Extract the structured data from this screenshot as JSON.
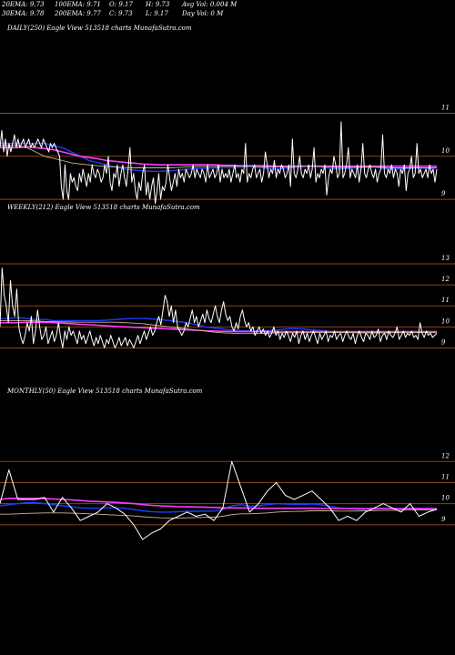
{
  "header": {
    "ema20": "20EMA: 9.73",
    "ema30": "30EMA: 9.78",
    "ema100": "100EMA: 9.71",
    "ema200": "200EMA: 9.77",
    "open": "O: 9.17",
    "close": "C: 9.73",
    "high": "H: 9.73",
    "low": "L: 9.17",
    "avg_vol": "Avg Vol: 0.004  M",
    "day_vol": "Day Vol: 0  M"
  },
  "colors": {
    "background": "#000000",
    "gridline": "#8b4513",
    "price": "#ffffff",
    "ema_short": "#1e3cff",
    "ema_long": "#ff3cff",
    "ema_mid": "#d2b48c"
  },
  "chart_data": [
    {
      "type": "line",
      "title": "DAILY(250) Eagle   View  513518 charts MunafaSutra.com",
      "ylim": [
        8.6,
        11.2
      ],
      "ytick_labels": [
        "11",
        "10",
        "9"
      ],
      "ytick_values": [
        11,
        10,
        9
      ],
      "grid": "horizontal",
      "x_count": 250,
      "series": [
        {
          "style": "price",
          "values": [
            10.2,
            10.6,
            10.1,
            10.4,
            10.0,
            10.3,
            10.1,
            10.3,
            10.5,
            10.2,
            10.4,
            10.2,
            10.3,
            10.4,
            10.2,
            10.3,
            10.4,
            10.2,
            10.3,
            10.2,
            10.3,
            10.4,
            10.3,
            10.2,
            10.4,
            10.3,
            10.2,
            10.1,
            10.3,
            10.2,
            10.3,
            10.2,
            10.1,
            10.0,
            9.3,
            9.0,
            9.8,
            9.2,
            9.0,
            9.6,
            9.4,
            9.5,
            9.3,
            9.2,
            9.6,
            9.4,
            9.7,
            9.5,
            9.3,
            9.6,
            9.4,
            9.8,
            9.6,
            9.5,
            9.7,
            9.6,
            9.4,
            9.5,
            9.8,
            9.6,
            10.0,
            9.4,
            9.2,
            9.6,
            9.5,
            9.8,
            9.3,
            9.6,
            9.8,
            9.5,
            9.3,
            9.7,
            10.2,
            9.4,
            9.6,
            9.2,
            9.0,
            9.4,
            9.2,
            9.6,
            9.8,
            9.1,
            9.4,
            9.0,
            9.3,
            9.5,
            8.9,
            9.2,
            9.6,
            9.0,
            9.3,
            9.2,
            9.4,
            9.8,
            9.5,
            9.2,
            9.4,
            9.6,
            9.3,
            9.7,
            9.5,
            9.6,
            9.4,
            9.7,
            9.6,
            9.5,
            9.6,
            9.8,
            9.5,
            9.7,
            9.6,
            9.5,
            9.7,
            9.6,
            9.4,
            9.8,
            9.5,
            9.6,
            9.7,
            9.5,
            9.6,
            9.8,
            9.4,
            9.7,
            9.5,
            9.6,
            9.5,
            9.7,
            9.4,
            9.6,
            9.8,
            9.5,
            9.6,
            9.4,
            9.7,
            9.6,
            10.3,
            9.4,
            9.6,
            9.5,
            9.7,
            9.8,
            9.5,
            9.6,
            9.7,
            9.4,
            9.6,
            10.1,
            9.8,
            9.5,
            9.7,
            9.6,
            9.9,
            9.5,
            9.7,
            9.6,
            9.8,
            9.7,
            9.5,
            9.6,
            9.8,
            9.3,
            10.4,
            9.6,
            9.5,
            9.7,
            10.0,
            9.6,
            9.5,
            9.7,
            9.6,
            9.8,
            9.5,
            9.7,
            10.2,
            9.4,
            9.6,
            9.5,
            9.7,
            9.6,
            9.8,
            9.1,
            9.5,
            9.7,
            9.6,
            10.0,
            9.8,
            9.5,
            9.6,
            10.8,
            9.5,
            9.6,
            9.8,
            10.2,
            9.5,
            9.7,
            9.6,
            9.5,
            9.8,
            9.4,
            9.7,
            10.3,
            9.6,
            9.5,
            9.7,
            9.8,
            9.6,
            9.5,
            9.7,
            9.4,
            9.6,
            9.7,
            10.5,
            9.6,
            9.5,
            9.7,
            9.6,
            9.8,
            9.5,
            9.7,
            9.6,
            9.3,
            9.7,
            9.6,
            9.8,
            9.2,
            9.6,
            9.7,
            10.0,
            9.5,
            9.6,
            10.3,
            9.6,
            9.7,
            9.5,
            9.6,
            9.7,
            9.5,
            9.8,
            9.6,
            9.7,
            9.4,
            9.7
          ]
        },
        {
          "style": "ema_short",
          "values": [
            10.3,
            10.3,
            10.3,
            10.3,
            10.3,
            10.3,
            10.25,
            10.2,
            10.1,
            10.0,
            9.9,
            9.85,
            9.8,
            9.75,
            9.7,
            9.68,
            9.66,
            9.65,
            9.65,
            9.66,
            9.68,
            9.7,
            9.72,
            9.72,
            9.73,
            9.74,
            9.74,
            9.75,
            9.76,
            9.74,
            9.72,
            9.7,
            9.72,
            9.74,
            9.76,
            9.78,
            9.75,
            9.72,
            9.7,
            9.72,
            9.73,
            9.74,
            9.75,
            9.72,
            9.7,
            9.71,
            9.72,
            9.73,
            9.72,
            9.73
          ]
        },
        {
          "style": "ema_long",
          "values": [
            10.2,
            10.2,
            10.2,
            10.22,
            10.2,
            10.18,
            10.15,
            10.1,
            10.05,
            10.0,
            9.97,
            9.94,
            9.9,
            9.88,
            9.86,
            9.84,
            9.82,
            9.81,
            9.8,
            9.8,
            9.8,
            9.8,
            9.8,
            9.8,
            9.8,
            9.79,
            9.79,
            9.78,
            9.78,
            9.78,
            9.78,
            9.77,
            9.77,
            9.77,
            9.77,
            9.77,
            9.77,
            9.77,
            9.77,
            9.77,
            9.77,
            9.77,
            9.77,
            9.77,
            9.77,
            9.77,
            9.77,
            9.77,
            9.77,
            9.77
          ]
        },
        {
          "style": "ema_mid",
          "values": [
            10.25,
            10.25,
            10.25,
            10.2,
            10.1,
            10.0,
            9.95,
            9.9,
            9.85,
            9.82,
            9.8,
            9.78,
            9.76,
            9.75,
            9.74,
            9.73,
            9.73,
            9.73,
            9.73,
            9.73,
            9.74,
            9.75,
            9.76,
            9.76,
            9.76,
            9.77,
            9.77,
            9.77,
            9.77,
            9.76,
            9.75,
            9.75,
            9.75,
            9.76,
            9.77,
            9.77,
            9.76,
            9.75,
            9.74,
            9.74,
            9.75,
            9.75,
            9.75,
            9.74,
            9.73,
            9.73,
            9.73,
            9.73,
            9.73,
            9.73
          ]
        }
      ]
    },
    {
      "type": "line",
      "title": "WEEKLY(212) Eagle   View  513518 charts MunafaSutra.com",
      "ylim": [
        8.5,
        13.3
      ],
      "ytick_labels": [
        "13",
        "12",
        "11",
        "10",
        "9"
      ],
      "ytick_values": [
        13,
        12,
        11,
        10,
        9
      ],
      "grid": "horizontal",
      "x_count": 212,
      "series": [
        {
          "style": "price",
          "values": [
            10.0,
            12.8,
            11.5,
            11.0,
            10.2,
            12.2,
            11.0,
            10.5,
            11.8,
            10.0,
            9.5,
            9.2,
            9.6,
            10.2,
            9.8,
            10.5,
            9.2,
            9.8,
            10.8,
            10.0,
            9.4,
            9.6,
            10.0,
            9.2,
            9.5,
            9.8,
            9.3,
            9.6,
            10.2,
            9.5,
            9.0,
            9.8,
            9.4,
            10.0,
            9.6,
            9.8,
            9.5,
            9.2,
            9.8,
            9.4,
            9.6,
            9.2,
            9.5,
            9.8,
            9.4,
            9.1,
            9.5,
            9.2,
            9.6,
            9.3,
            9.0,
            9.4,
            9.2,
            9.6,
            9.3,
            9.0,
            9.2,
            9.5,
            9.1,
            9.3,
            9.5,
            9.1,
            9.4,
            9.2,
            9.0,
            9.3,
            9.6,
            9.2,
            9.5,
            9.8,
            9.4,
            9.7,
            10.0,
            9.6,
            9.8,
            10.2,
            10.5,
            10.1,
            10.8,
            11.5,
            11.2,
            10.5,
            11.0,
            10.2,
            10.8,
            10.0,
            9.8,
            9.6,
            9.8,
            10.2,
            10.0,
            10.4,
            10.8,
            10.2,
            10.5,
            10.0,
            10.3,
            10.6,
            10.2,
            10.8,
            10.4,
            10.2,
            10.6,
            11.0,
            10.5,
            10.2,
            10.8,
            11.2,
            10.6,
            10.3,
            10.5,
            10.0,
            9.8,
            10.2,
            9.9,
            10.5,
            10.8,
            10.3,
            10.0,
            10.2,
            9.8,
            10.0,
            9.6,
            9.8,
            10.0,
            9.7,
            9.9,
            9.6,
            9.8,
            9.5,
            9.7,
            10.0,
            9.6,
            9.8,
            9.4,
            9.7,
            9.5,
            9.8,
            9.6,
            9.3,
            9.7,
            9.5,
            9.8,
            9.2,
            9.6,
            9.8,
            9.4,
            9.7,
            9.3,
            9.6,
            9.8,
            9.5,
            9.2,
            9.7,
            9.4,
            9.6,
            9.8,
            9.3,
            9.6,
            9.5,
            9.8,
            9.4,
            9.6,
            9.7,
            9.3,
            9.6,
            9.8,
            9.5,
            9.4,
            9.7,
            9.2,
            9.6,
            9.8,
            9.5,
            9.3,
            9.7,
            9.6,
            9.4,
            9.8,
            9.5,
            9.6,
            9.9,
            9.3,
            9.6,
            9.7,
            9.4,
            9.8,
            9.6,
            9.5,
            9.7,
            10.0,
            9.4,
            9.6,
            9.8,
            9.5,
            9.7,
            9.6,
            9.8,
            9.5,
            9.6,
            9.4,
            10.2,
            9.7,
            9.5,
            9.8,
            9.6,
            9.7,
            9.5,
            9.6,
            9.7
          ]
        },
        {
          "style": "ema_short",
          "values": [
            10.4,
            10.4,
            10.45,
            10.4,
            10.35,
            10.35,
            10.3,
            10.3,
            10.3,
            10.3,
            10.3,
            10.3,
            10.32,
            10.35,
            10.38,
            10.4,
            10.4,
            10.38,
            10.35,
            10.3,
            10.25,
            10.2,
            10.1,
            10.0,
            9.95,
            9.9,
            9.85,
            9.82,
            9.8,
            9.8,
            9.82,
            9.85,
            9.9,
            9.92,
            9.9,
            9.86,
            9.82,
            9.78,
            9.76,
            9.74,
            9.72,
            9.7,
            9.7,
            9.7,
            9.72,
            9.73,
            9.73,
            9.73,
            9.73,
            9.73
          ]
        },
        {
          "style": "ema_long",
          "values": [
            10.2,
            10.2,
            10.2,
            10.22,
            10.22,
            10.22,
            10.2,
            10.18,
            10.15,
            10.12,
            10.1,
            10.08,
            10.05,
            10.02,
            10.0,
            9.98,
            9.96,
            9.94,
            9.92,
            9.9,
            9.88,
            9.86,
            9.84,
            9.82,
            9.8,
            9.79,
            9.78,
            9.77,
            9.77,
            9.77,
            9.77,
            9.77,
            9.77,
            9.77,
            9.77,
            9.77,
            9.77,
            9.77,
            9.77,
            9.77,
            9.77,
            9.77,
            9.77,
            9.77,
            9.77,
            9.77,
            9.77,
            9.77,
            9.77,
            9.77
          ]
        },
        {
          "style": "ema_mid",
          "values": [
            10.3,
            10.3,
            10.3,
            10.3,
            10.28,
            10.26,
            10.25,
            10.24,
            10.23,
            10.22,
            10.22,
            10.22,
            10.22,
            10.22,
            10.2,
            10.18,
            10.15,
            10.1,
            10.05,
            10.0,
            9.95,
            9.9,
            9.85,
            9.8,
            9.75,
            9.72,
            9.7,
            9.68,
            9.68,
            9.68,
            9.7,
            9.72,
            9.72,
            9.72,
            9.72,
            9.73,
            9.73,
            9.73,
            9.73,
            9.73,
            9.73,
            9.73,
            9.73,
            9.73,
            9.73,
            9.73,
            9.73,
            9.73,
            9.73,
            9.73
          ]
        }
      ]
    },
    {
      "type": "line",
      "title": "MONTHLY(50) Eagle   View  513518 charts MunafaSutra.com",
      "ylim": [
        8.0,
        12.4
      ],
      "ytick_labels": [
        "12",
        "11",
        "10",
        "9"
      ],
      "ytick_values": [
        12,
        11,
        10,
        9
      ],
      "grid": "horizontal",
      "x_count": 50,
      "series": [
        {
          "style": "price",
          "values": [
            10.0,
            11.6,
            10.2,
            10.2,
            10.2,
            10.3,
            9.6,
            10.3,
            9.8,
            9.2,
            9.4,
            9.6,
            10.0,
            9.8,
            9.5,
            9.0,
            8.3,
            8.6,
            8.8,
            9.2,
            9.4,
            9.6,
            9.4,
            9.5,
            9.2,
            9.8,
            12.0,
            10.8,
            9.6,
            10.0,
            10.6,
            11.0,
            10.4,
            10.2,
            10.4,
            10.6,
            10.2,
            9.8,
            9.2,
            9.4,
            9.2,
            9.6,
            9.8,
            10.0,
            9.8,
            9.6,
            10.0,
            9.4,
            9.6,
            9.73
          ]
        },
        {
          "style": "ema_short",
          "values": [
            9.9,
            9.95,
            10.0,
            10.05,
            10.05,
            10.0,
            9.95,
            9.9,
            9.85,
            9.8,
            9.78,
            9.78,
            9.8,
            9.8,
            9.78,
            9.72,
            9.66,
            9.62,
            9.6,
            9.6,
            9.62,
            9.64,
            9.64,
            9.65,
            9.65,
            9.72,
            9.9,
            9.95,
            9.88,
            9.9,
            9.95,
            10.0,
            9.98,
            9.96,
            9.96,
            9.98,
            9.95,
            9.88,
            9.8,
            9.76,
            9.72,
            9.72,
            9.74,
            9.78,
            9.76,
            9.74,
            9.78,
            9.74,
            9.73,
            9.73
          ]
        },
        {
          "style": "ema_long",
          "values": [
            10.2,
            10.25,
            10.25,
            10.25,
            10.25,
            10.24,
            10.22,
            10.2,
            10.18,
            10.15,
            10.12,
            10.1,
            10.08,
            10.06,
            10.03,
            10.0,
            9.96,
            9.92,
            9.9,
            9.88,
            9.86,
            9.85,
            9.84,
            9.83,
            9.82,
            9.8,
            9.8,
            9.8,
            9.79,
            9.78,
            9.78,
            9.78,
            9.78,
            9.78,
            9.78,
            9.78,
            9.77,
            9.77,
            9.77,
            9.77,
            9.77,
            9.77,
            9.77,
            9.77,
            9.77,
            9.77,
            9.77,
            9.77,
            9.77,
            9.77
          ]
        },
        {
          "style": "ema_mid",
          "values": [
            9.5,
            9.5,
            9.52,
            9.54,
            9.55,
            9.56,
            9.56,
            9.56,
            9.55,
            9.54,
            9.52,
            9.5,
            9.48,
            9.46,
            9.44,
            9.42,
            9.38,
            9.35,
            9.33,
            9.32,
            9.32,
            9.33,
            9.34,
            9.35,
            9.36,
            9.4,
            9.48,
            9.52,
            9.52,
            9.54,
            9.56,
            9.6,
            9.62,
            9.63,
            9.64,
            9.66,
            9.66,
            9.66,
            9.65,
            9.65,
            9.65,
            9.66,
            9.67,
            9.68,
            9.68,
            9.69,
            9.7,
            9.7,
            9.71,
            9.71
          ]
        }
      ]
    }
  ]
}
